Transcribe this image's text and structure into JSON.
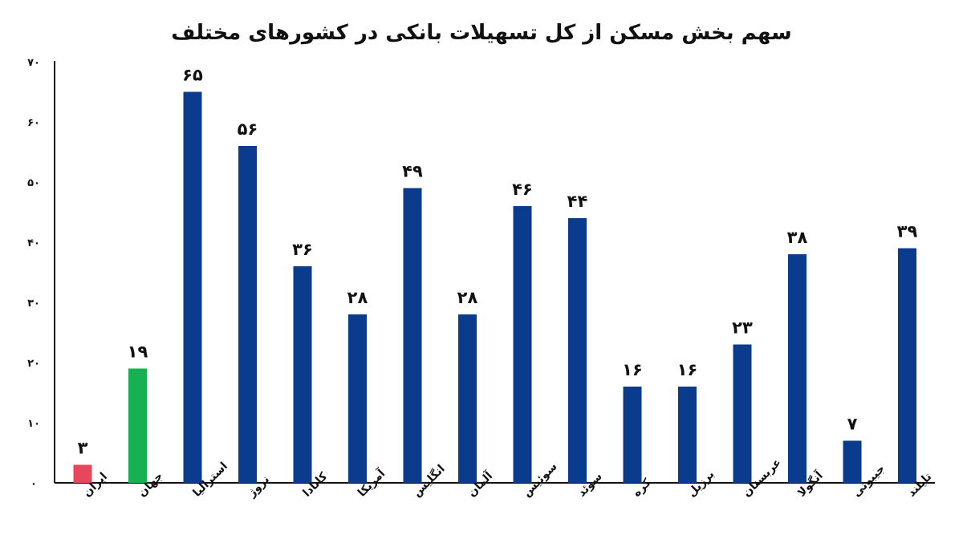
{
  "chart_data": {
    "type": "bar",
    "title": "سهم بخش مسکن از کل تسهیلات بانکی در کشورهای مختلف",
    "categories": [
      "ایران",
      "جهان",
      "استرالیا",
      "نروژ",
      "کانادا",
      "آمریکا",
      "انگلیس",
      "آلمان",
      "سوئیس",
      "سوئد",
      "کره",
      "برزیل",
      "عربستان",
      "آنگولا",
      "جیبوتی",
      "تایلند"
    ],
    "values": [
      3,
      19,
      65,
      56,
      36,
      28,
      49,
      28,
      46,
      44,
      16,
      16,
      23,
      38,
      7,
      39
    ],
    "value_labels": [
      "۳",
      "۱۹",
      "۶۵",
      "۵۶",
      "۳۶",
      "۲۸",
      "۴۹",
      "۲۸",
      "۴۶",
      "۴۴",
      "۱۶",
      "۱۶",
      "۲۳",
      "۳۸",
      "۷",
      "۳۹"
    ],
    "colors": [
      "#e8455f",
      "#17b154",
      "#0b3b8c",
      "#0b3b8c",
      "#0b3b8c",
      "#0b3b8c",
      "#0b3b8c",
      "#0b3b8c",
      "#0b3b8c",
      "#0b3b8c",
      "#0b3b8c",
      "#0b3b8c",
      "#0b3b8c",
      "#0b3b8c",
      "#0b3b8c",
      "#0b3b8c"
    ],
    "ylim": [
      0,
      70
    ],
    "yticks": [
      0,
      10,
      20,
      30,
      40,
      50,
      60,
      70
    ],
    "ytick_labels": [
      "۰",
      "۱۰",
      "۲۰",
      "۳۰",
      "۴۰",
      "۵۰",
      "۶۰",
      "۷۰"
    ],
    "grid": false,
    "xlabel": "",
    "ylabel": ""
  }
}
